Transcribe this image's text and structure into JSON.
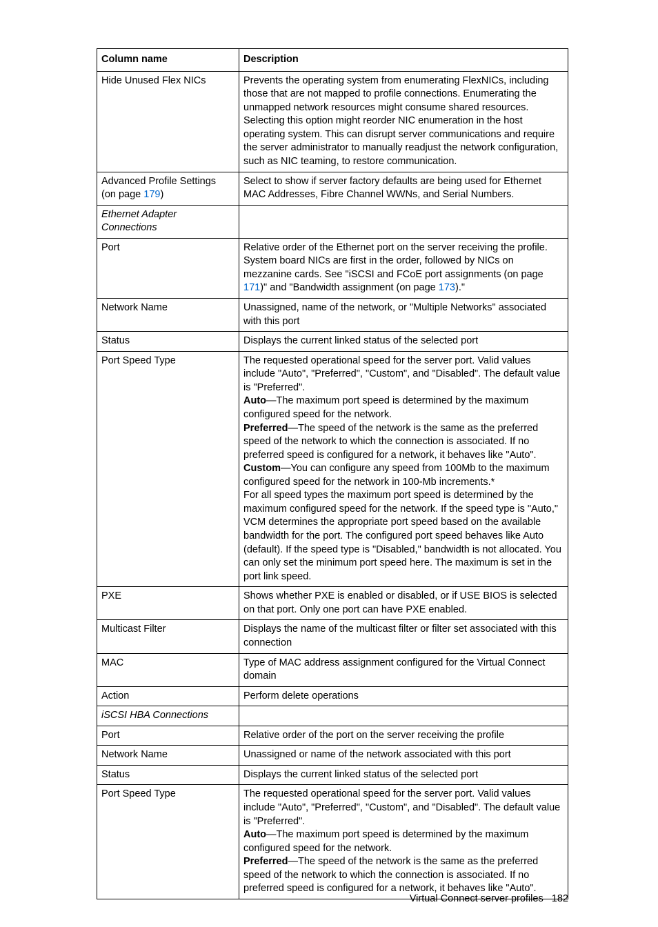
{
  "table": {
    "headers": {
      "col1": "Column name",
      "col2": "Description"
    },
    "rows": [
      {
        "name_parts": [
          {
            "t": "Hide Unused Flex NICs"
          }
        ],
        "desc_parts": [
          {
            "t": "Prevents the operating system from enumerating FlexNICs, including those that are not mapped to profile connections. Enumerating the unmapped network resources might consume shared resources."
          },
          {
            "br": true
          },
          {
            "t": "Selecting this option might reorder NIC enumeration in the host operating system. This can disrupt server communications and require the server administrator to manually readjust the network configuration, such as NIC teaming, to restore communication."
          }
        ]
      },
      {
        "name_parts": [
          {
            "t": "Advanced Profile Settings (on page "
          },
          {
            "t": "179",
            "link": true
          },
          {
            "t": ")"
          }
        ],
        "desc_parts": [
          {
            "t": "Select to show if server factory defaults are being used for Ethernet MAC Addresses, Fibre Channel WWNs, and Serial Numbers."
          }
        ]
      },
      {
        "name_parts": [
          {
            "t": "Ethernet Adapter Connections",
            "italic": true
          }
        ],
        "desc_parts": []
      },
      {
        "name_parts": [
          {
            "t": "Port"
          }
        ],
        "desc_parts": [
          {
            "t": "Relative order of the Ethernet port on the server receiving the profile. System board NICs are first in the order, followed by NICs on mezzanine cards. See \"iSCSI and FCoE port assignments (on page "
          },
          {
            "t": "171",
            "link": true
          },
          {
            "t": ")\" and \"Bandwidth assignment (on page "
          },
          {
            "t": "173",
            "link": true
          },
          {
            "t": ").\""
          }
        ]
      },
      {
        "name_parts": [
          {
            "t": "Network Name"
          }
        ],
        "desc_parts": [
          {
            "t": "Unassigned, name of the network, or \"Multiple Networks\" associated with this port"
          }
        ]
      },
      {
        "name_parts": [
          {
            "t": "Status"
          }
        ],
        "desc_parts": [
          {
            "t": "Displays the current linked status of the selected port"
          }
        ]
      },
      {
        "name_parts": [
          {
            "t": "Port Speed Type"
          }
        ],
        "desc_parts": [
          {
            "t": "The requested operational speed for the server port. Valid values include \"Auto\", \"Preferred\", \"Custom\", and \"Disabled\". The default value is \"Preferred\"."
          },
          {
            "br": true
          },
          {
            "t": "Auto",
            "bold": true
          },
          {
            "t": "—The maximum port speed is determined by the maximum configured speed for the network."
          },
          {
            "br": true
          },
          {
            "t": "Preferred",
            "bold": true
          },
          {
            "t": "—The speed of the network is the same as the preferred speed of the network to which the connection is associated. If no preferred speed is configured for a network, it behaves like \"Auto\"."
          },
          {
            "br": true
          },
          {
            "t": "Custom",
            "bold": true
          },
          {
            "t": "—You can configure any speed from 100Mb to the maximum configured speed for the network in 100-Mb increments.*"
          },
          {
            "br": true
          },
          {
            "t": "For all speed types the maximum port speed is determined by the maximum configured speed for the network. If the speed type is \"Auto,\" VCM determines the appropriate port speed based on the available bandwidth for the port. The configured port speed behaves like Auto (default). If the speed type is \"Disabled,\" bandwidth is not allocated. You can only set the minimum port speed here. The maximum is set in the port link speed."
          }
        ]
      },
      {
        "name_parts": [
          {
            "t": "PXE"
          }
        ],
        "desc_parts": [
          {
            "t": "Shows whether PXE is enabled or disabled, or if USE BIOS is selected on that port. Only one port can have PXE enabled."
          }
        ]
      },
      {
        "name_parts": [
          {
            "t": "Multicast Filter"
          }
        ],
        "desc_parts": [
          {
            "t": "Displays the name of the multicast filter or filter set associated with this connection"
          }
        ]
      },
      {
        "name_parts": [
          {
            "t": "MAC"
          }
        ],
        "desc_parts": [
          {
            "t": "Type of MAC address assignment configured for the Virtual Connect domain"
          }
        ]
      },
      {
        "name_parts": [
          {
            "t": "Action"
          }
        ],
        "desc_parts": [
          {
            "t": "Perform delete operations"
          }
        ]
      },
      {
        "name_parts": [
          {
            "t": "iSCSI HBA Connections",
            "italic": true
          }
        ],
        "desc_parts": []
      },
      {
        "name_parts": [
          {
            "t": "Port"
          }
        ],
        "desc_parts": [
          {
            "t": "Relative order of the port on the server receiving the profile"
          }
        ]
      },
      {
        "name_parts": [
          {
            "t": "Network Name"
          }
        ],
        "desc_parts": [
          {
            "t": "Unassigned or name of the network associated with this port"
          }
        ]
      },
      {
        "name_parts": [
          {
            "t": "Status"
          }
        ],
        "desc_parts": [
          {
            "t": "Displays the current linked status of the selected port"
          }
        ]
      },
      {
        "name_parts": [
          {
            "t": "Port Speed Type"
          }
        ],
        "desc_parts": [
          {
            "t": "The requested operational speed for the server port. Valid values include \"Auto\", \"Preferred\", \"Custom\", and \"Disabled\". The default value is \"Preferred\"."
          },
          {
            "br": true
          },
          {
            "t": "Auto",
            "bold": true
          },
          {
            "t": "—The maximum port speed is determined by the maximum configured speed for the network."
          },
          {
            "br": true
          },
          {
            "t": "Preferred",
            "bold": true
          },
          {
            "t": "—The speed of the network is the same as the preferred speed of the network to which the connection is associated. If no preferred speed is configured for a network, it behaves like \"Auto\"."
          }
        ]
      }
    ]
  },
  "footer": {
    "text": "Virtual Connect server profiles",
    "page": "182"
  }
}
